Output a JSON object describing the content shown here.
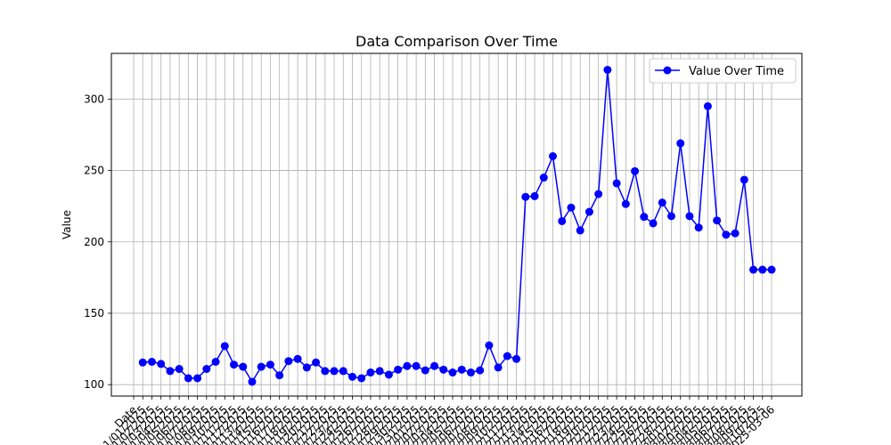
{
  "chart_data": {
    "type": "line",
    "title": "Data Comparison Over Time",
    "xlabel": "",
    "ylabel": "Value",
    "ylim": [
      92,
      332
    ],
    "yticks": [
      100,
      150,
      200,
      250,
      300
    ],
    "grid": true,
    "legend_position": "top-right",
    "categories": [
      "Date",
      "01/01/2025",
      "01/02/2025",
      "01/03/2025",
      "01/04/2025",
      "01/05/2025",
      "01/06/2025",
      "01/07/2025",
      "01/08/2025",
      "01/09/2025",
      "01/10/2025",
      "01/11/2025",
      "01/12/2025",
      "01/13/2025",
      "01/14/2025",
      "01/15/2025",
      "01/16/2025",
      "01/17/2025",
      "01/18/2025",
      "01/19/2025",
      "01/20/2025",
      "01/21/2025",
      "01/22/2025",
      "01/23/2025",
      "01/24/2025",
      "01/25/2025",
      "01/26/2025",
      "01/27/2025",
      "01/28/2025",
      "01/29/2025",
      "01/30/2025",
      "01/31/2025",
      "02/01/2025",
      "02/02/2025",
      "02/03/2025",
      "02/04/2025",
      "02/05/2025",
      "02/06/2025",
      "02/07/2025",
      "02/08/2025",
      "02/09/2025",
      "02/10/2025",
      "02/11/2025",
      "02/12/2025",
      "02/13/2025",
      "02/14/2025",
      "02/15/2025",
      "02/16/2025",
      "02/17/2025",
      "02/18/2025",
      "02/19/2025",
      "02/20/2025",
      "02/21/2025",
      "02/22/2025",
      "02/23/2025",
      "02/24/2025",
      "02/25/2025",
      "02/26/2025",
      "02/27/2025",
      "02/28/2025",
      "03/01/2025",
      "03/02/2025",
      "03/03/2025",
      "03/04/2025",
      "03/05/2025",
      "03/06/2025",
      "03/07/2025",
      "03/08/2025",
      "03/09/2025",
      "03/10/2025",
      "2025-03-06"
    ],
    "series": [
      {
        "name": "Value Over Time",
        "color": "#0000ff",
        "marker": "circle",
        "values": [
          null,
          115.5,
          116,
          114.5,
          109.5,
          111,
          104.5,
          104.5,
          111,
          116,
          127,
          114,
          112.5,
          102,
          112.5,
          114,
          106.5,
          116.5,
          118,
          112,
          115.5,
          109.5,
          109.5,
          109.5,
          105.5,
          104.5,
          108.5,
          109.5,
          107,
          110.5,
          113,
          113,
          110,
          113,
          110.5,
          108.5,
          110.5,
          108.5,
          110,
          127.5,
          112,
          120,
          118,
          231.5,
          232,
          245,
          260,
          214.5,
          224,
          208,
          221,
          233.5,
          320.5,
          241,
          226.5,
          249.5,
          217.5,
          213,
          227.5,
          218,
          269,
          218,
          210,
          295,
          215,
          205,
          206,
          243.5,
          180.5,
          180.5,
          180.5
        ]
      }
    ]
  }
}
